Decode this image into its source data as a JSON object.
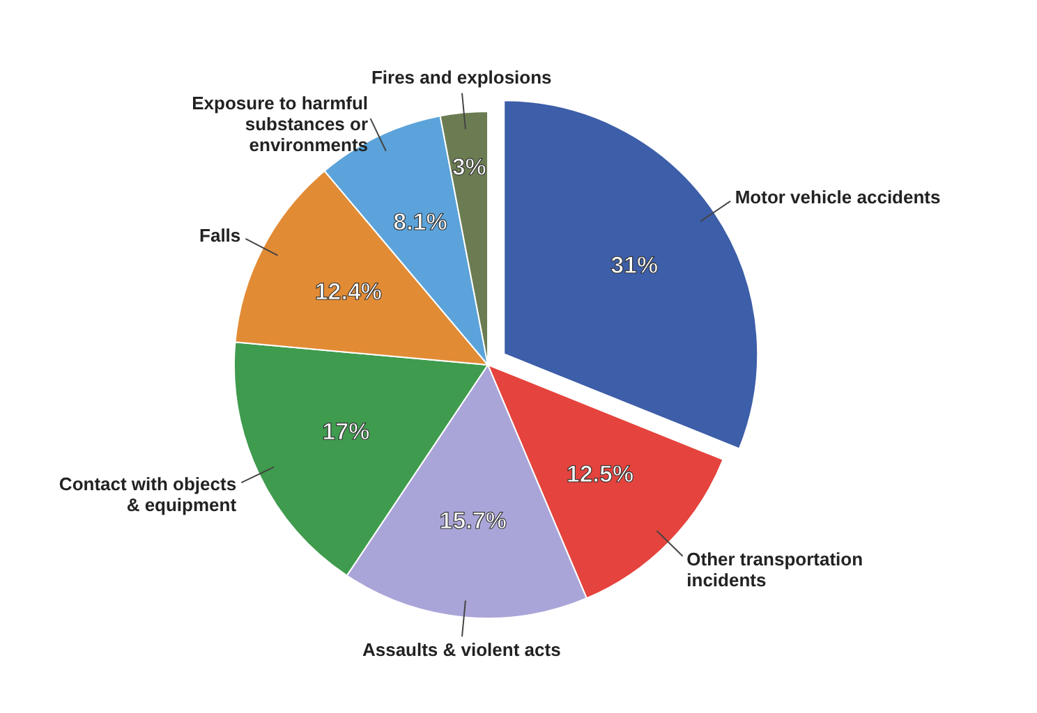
{
  "chart_data": {
    "type": "pie",
    "categories": [
      "Motor vehicle accidents",
      "Other transportation\nincidents",
      "Assaults & violent acts",
      "Contact with objects\n& equipment",
      "Falls",
      "Exposure to harmful\nsubstances or\nenvironments",
      "Fires and explosions"
    ],
    "values": [
      31,
      12.5,
      15.7,
      17,
      12.4,
      8.1,
      3
    ],
    "value_labels": [
      "31%",
      "12.5%",
      "15.7%",
      "17%",
      "12.4%",
      "8.1%",
      "3%"
    ],
    "colors": [
      "#3d5ea8",
      "#e5433d",
      "#aaa5d8",
      "#3f9b4e",
      "#e28b35",
      "#5ba3da",
      "#6b7c52"
    ]
  }
}
